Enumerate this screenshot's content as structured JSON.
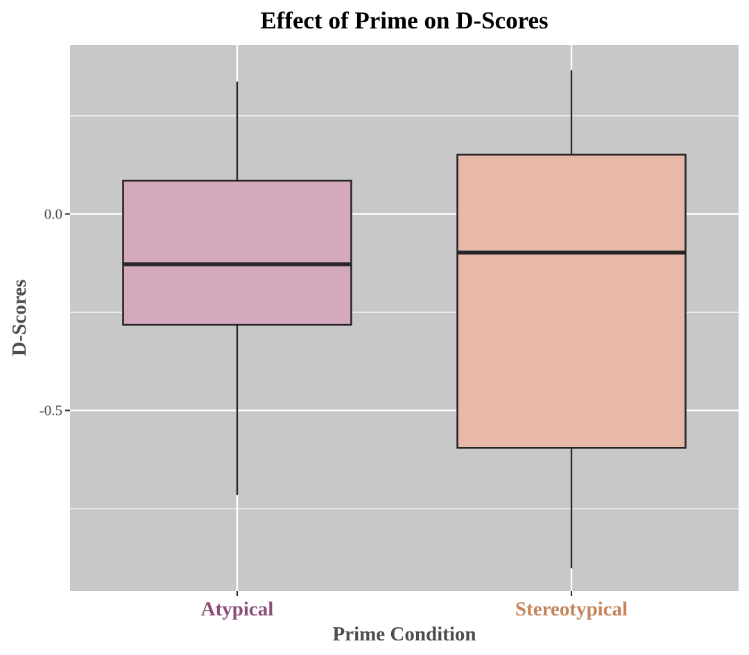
{
  "chart_data": {
    "type": "box",
    "title": "Effect of Prime on D-Scores",
    "xlabel": "Prime Condition",
    "ylabel": "D-Scores",
    "categories": [
      "Atypical",
      "Stereotypical"
    ],
    "boxes": [
      {
        "name": "Atypical",
        "whisker_low": -0.715,
        "q1": -0.282,
        "median": -0.128,
        "q3": 0.085,
        "whisker_high": 0.337,
        "fill": "#d4a9bd",
        "label_color": "#8b4f76"
      },
      {
        "name": "Stereotypical",
        "whisker_low": -0.902,
        "q1": -0.595,
        "median": -0.098,
        "q3": 0.151,
        "whisker_high": 0.366,
        "fill": "#e8b8a9",
        "label_color": "#c4855a"
      }
    ],
    "y_ticks": [
      {
        "value": 0.0,
        "label": "0.0"
      },
      {
        "value": -0.5,
        "label": "-0.5"
      }
    ],
    "y_minor_gridlines": [
      0.25,
      -0.25,
      -0.75
    ],
    "ylim": [
      -0.96,
      0.43
    ],
    "grid": true,
    "panel_color": "#c8c8c8",
    "legend": "none"
  }
}
